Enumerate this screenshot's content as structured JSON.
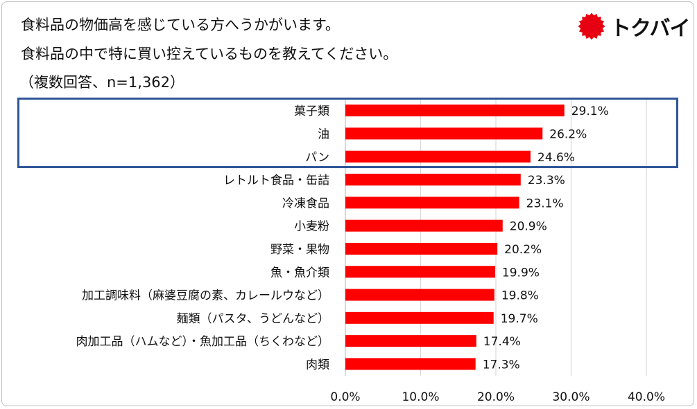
{
  "question": {
    "line1": "食料品の物価高を感じている方へうかがいます。",
    "line2": "食料品の中で特に買い控えているものを教えてください。",
    "line3": "（複数回答、n=1,362）"
  },
  "logo": {
    "text": "トクバイ",
    "mark_color": "#e60012"
  },
  "colors": {
    "bar": "#ff0000",
    "highlight_border": "#2f5597",
    "grid": "#d9d9d9"
  },
  "chart_data": {
    "type": "bar",
    "orientation": "horizontal",
    "categories": [
      "菓子類",
      "油",
      "パン",
      "レトルト食品・缶詰",
      "冷凍食品",
      "小麦粉",
      "野菜・果物",
      "魚・魚介類",
      "加工調味料（麻婆豆腐の素、カレールウなど）",
      "麺類（パスタ、うどんなど）",
      "肉加工品（ハムなど）・魚加工品（ちくわなど）",
      "肉類"
    ],
    "values": [
      29.1,
      26.2,
      24.6,
      23.3,
      23.1,
      20.9,
      20.2,
      19.9,
      19.8,
      19.7,
      17.4,
      17.3
    ],
    "data_labels": [
      "29.1%",
      "26.2%",
      "24.6%",
      "23.3%",
      "23.1%",
      "20.9%",
      "20.2%",
      "19.9%",
      "19.8%",
      "19.7%",
      "17.4%",
      "17.3%"
    ],
    "xlim": [
      0,
      40
    ],
    "xticks": [
      0,
      10,
      20,
      30,
      40
    ],
    "xtick_labels": [
      "0.0%",
      "10.0%",
      "20.0%",
      "30.0%",
      "40.0%"
    ],
    "grid": true,
    "highlighted_categories": [
      "菓子類",
      "油",
      "パン"
    ]
  }
}
